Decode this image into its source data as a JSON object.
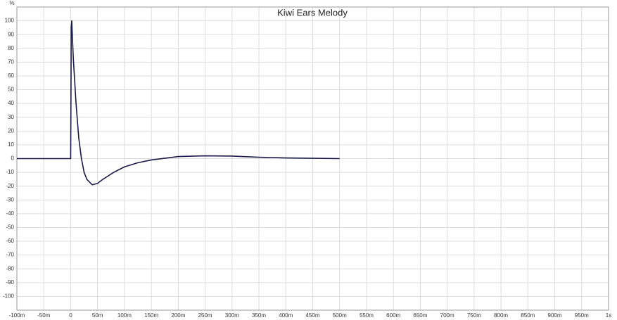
{
  "chart_data": {
    "type": "line",
    "title": "Kiwi Ears Melody",
    "y_label": "%",
    "x": [
      -0.1,
      -0.001,
      0,
      0.0005,
      0.001,
      0.002,
      0.003,
      0.005,
      0.01,
      0.015,
      0.02,
      0.025,
      0.03,
      0.04,
      0.05,
      0.06,
      0.08,
      0.1,
      0.125,
      0.15,
      0.2,
      0.25,
      0.3,
      0.35,
      0.4,
      0.45,
      0.5
    ],
    "series": [
      {
        "color": "#1a1a4a",
        "values": [
          0,
          0,
          0,
          40,
          95,
          100,
          90,
          72,
          40,
          15,
          0,
          -10,
          -15,
          -19,
          -18,
          -15,
          -10,
          -6,
          -3,
          -1,
          1.5,
          2,
          1.8,
          1,
          0.5,
          0.2,
          0
        ]
      }
    ],
    "xlim": [
      -0.1,
      1
    ],
    "ylim": [
      -110,
      110
    ],
    "xticks": [
      {
        "value": -0.1,
        "label": "-100m"
      },
      {
        "value": -0.05,
        "label": "-50m"
      },
      0,
      {
        "value": 0.05,
        "label": "50m"
      },
      {
        "value": 0.1,
        "label": "100m"
      },
      {
        "value": 0.15,
        "label": "150m"
      },
      {
        "value": 0.2,
        "label": "200m"
      },
      {
        "value": 0.25,
        "label": "250m"
      },
      {
        "value": 0.3,
        "label": "300m"
      },
      {
        "value": 0.35,
        "label": "350m"
      },
      {
        "value": 0.4,
        "label": "400m"
      },
      {
        "value": 0.45,
        "label": "450m"
      },
      {
        "value": 0.5,
        "label": "500m"
      },
      {
        "value": 0.55,
        "label": "550m"
      },
      {
        "value": 0.6,
        "label": "600m"
      },
      {
        "value": 0.65,
        "label": "650m"
      },
      {
        "value": 0.7,
        "label": "700m"
      },
      {
        "value": 0.75,
        "label": "750m"
      },
      {
        "value": 0.8,
        "label": "800m"
      },
      {
        "value": 0.85,
        "label": "850m"
      },
      {
        "value": 0.9,
        "label": "900m"
      },
      {
        "value": 0.95,
        "label": "950m"
      },
      {
        "value": 1,
        "label": "1s"
      }
    ],
    "yticks": [
      100,
      90,
      80,
      70,
      60,
      50,
      40,
      30,
      20,
      10,
      0,
      -10,
      -20,
      -30,
      -40,
      -50,
      -60,
      -70,
      -80,
      -90,
      -100
    ],
    "grid": true
  }
}
